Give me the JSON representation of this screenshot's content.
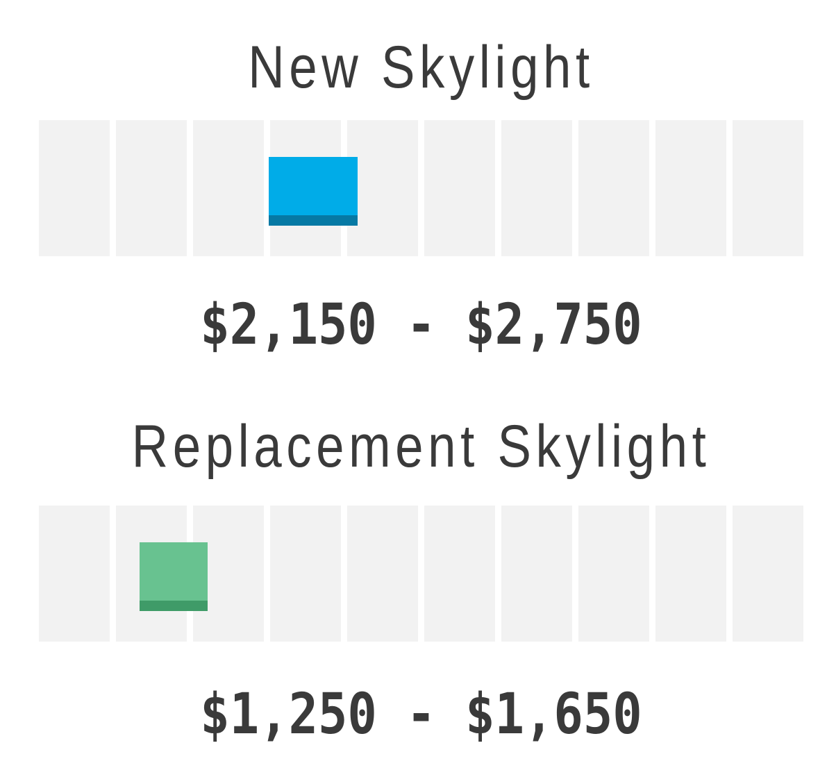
{
  "page": {
    "background": "#ffffff",
    "text_color": "#3a3a3a",
    "track_color": "#f2f2f2"
  },
  "chart_data": [
    {
      "type": "range-bar",
      "title": "New Skylight",
      "range_label": "$2,150 - $2,750",
      "price_low": 2150,
      "price_high": 2750,
      "currency": "USD",
      "track_segments": 10,
      "bar_start_pct": 30.1,
      "bar_width_pct": 11.6,
      "bar_color": "#00ace8",
      "bar_accent_color": "#0679a4"
    },
    {
      "type": "range-bar",
      "title": "Replacement Skylight",
      "range_label": "$1,250 - $1,650",
      "price_low": 1250,
      "price_high": 1650,
      "currency": "USD",
      "track_segments": 10,
      "bar_start_pct": 13.2,
      "bar_width_pct": 8.9,
      "bar_color": "#68c290",
      "bar_accent_color": "#3f9b68"
    }
  ]
}
